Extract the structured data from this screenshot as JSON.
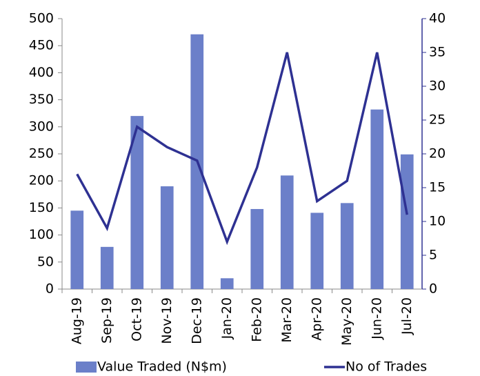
{
  "chart_data": {
    "type": "bar-line",
    "categories": [
      "Aug-19",
      "Sep-19",
      "Oct-19",
      "Nov-19",
      "Dec-19",
      "Jan-20",
      "Feb-20",
      "Mar-20",
      "Apr-20",
      "May-20",
      "Jun-20",
      "Jul-20"
    ],
    "series": [
      {
        "name": "Value Traded (N$m)",
        "type": "bar",
        "color": "#6b7fc9",
        "values": [
          145,
          78,
          320,
          190,
          471,
          20,
          148,
          210,
          141,
          159,
          332,
          249
        ]
      },
      {
        "name": "No of Trades",
        "type": "line",
        "color": "#2e3192",
        "axis": "y2",
        "values": [
          17,
          9,
          24,
          21,
          19,
          7,
          18,
          35,
          13,
          16,
          35,
          11
        ]
      }
    ],
    "ylim": [
      0,
      500
    ],
    "yticks": [
      0,
      50,
      100,
      150,
      200,
      250,
      300,
      350,
      400,
      450,
      500
    ],
    "y2lim": [
      0,
      40
    ],
    "y2ticks": [
      0,
      5,
      10,
      15,
      20,
      25,
      30,
      35,
      40
    ],
    "legend": "bottom"
  }
}
